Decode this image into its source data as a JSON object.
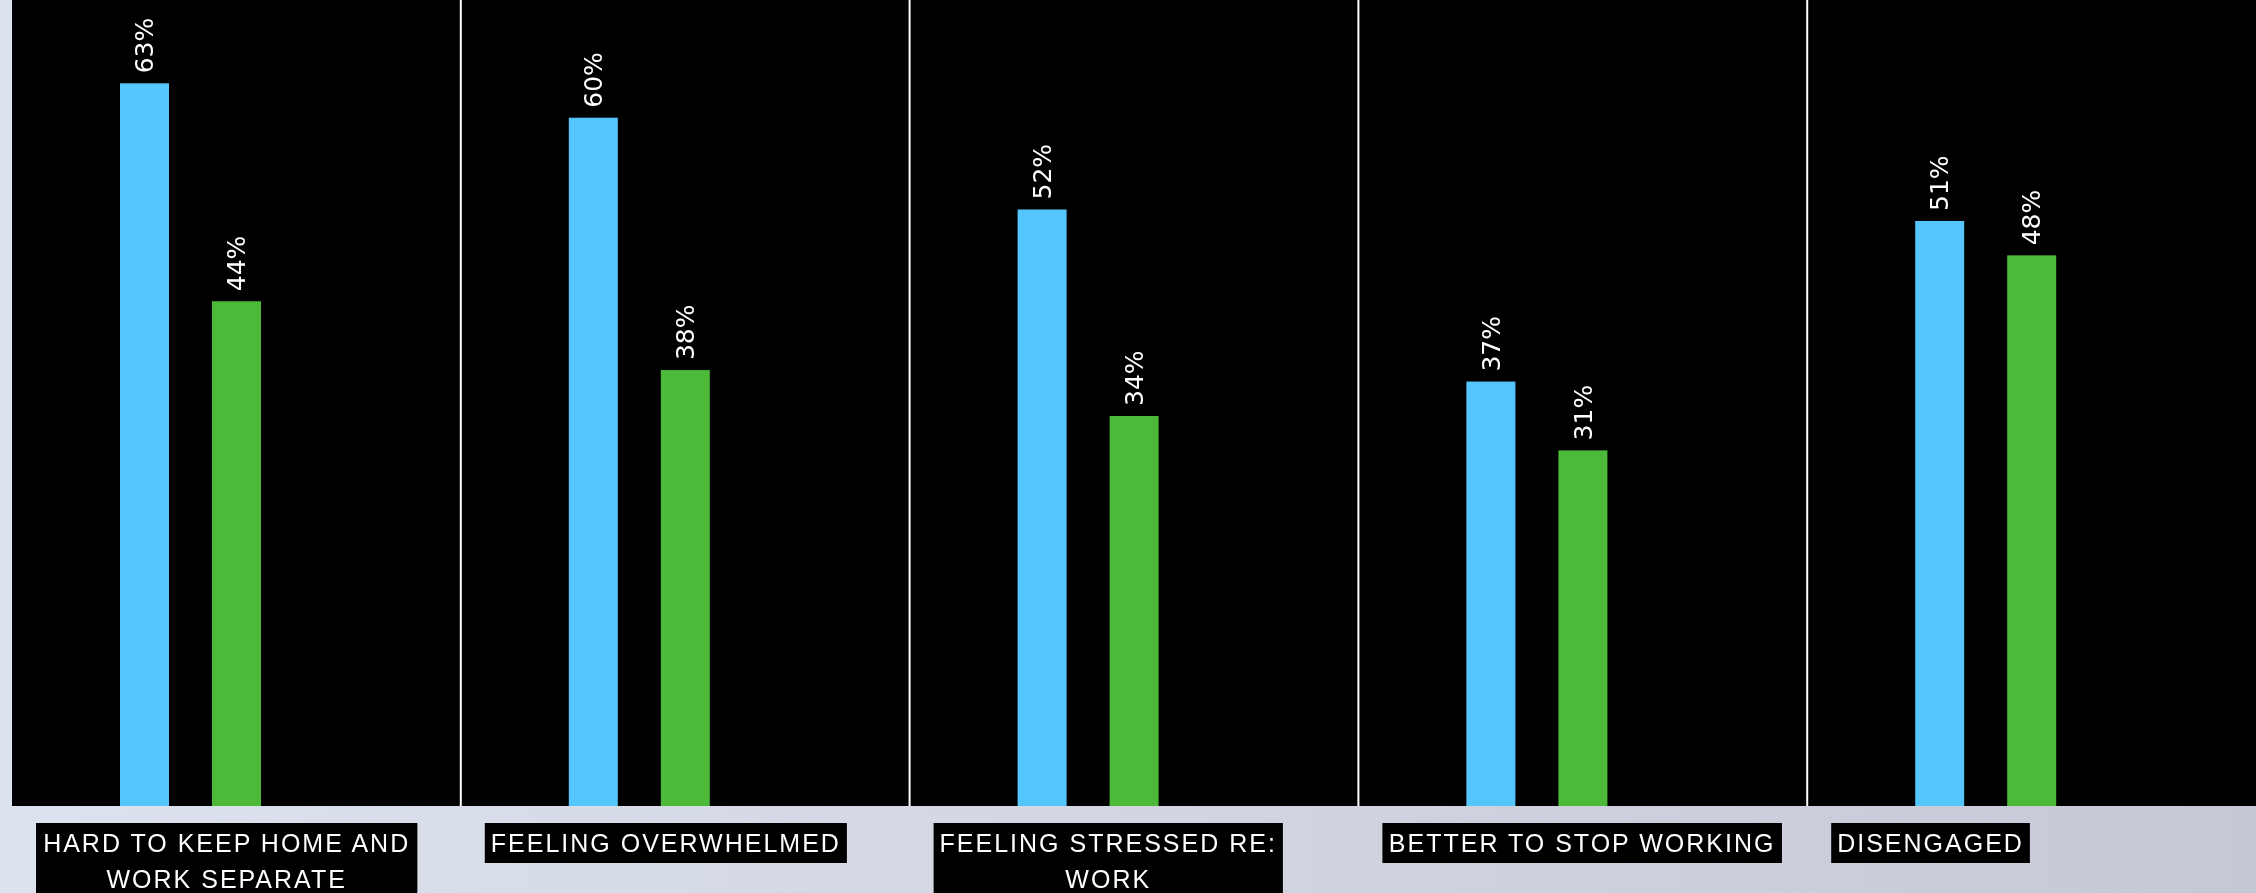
{
  "chart_data": {
    "type": "bar",
    "categories": [
      "HARD TO KEEP HOME AND WORK SEPARATE",
      "FEELING OVERWHELMED",
      "FEELING STRESSED RE: WORK",
      "BETTER TO STOP WORKING",
      "DISENGAGED"
    ],
    "series": [
      {
        "color": "#55c5fd",
        "values": [
          63,
          60,
          52,
          37,
          51
        ],
        "value_labels": [
          "63%",
          "60%",
          "52%",
          "37%",
          "51%"
        ]
      },
      {
        "color": "#4cba38",
        "values": [
          44,
          38,
          34,
          31,
          48
        ],
        "value_labels": [
          "44%",
          "38%",
          "34%",
          "31%",
          "48%"
        ]
      }
    ],
    "ylim": [
      0,
      70
    ],
    "tick_labels": "x"
  }
}
